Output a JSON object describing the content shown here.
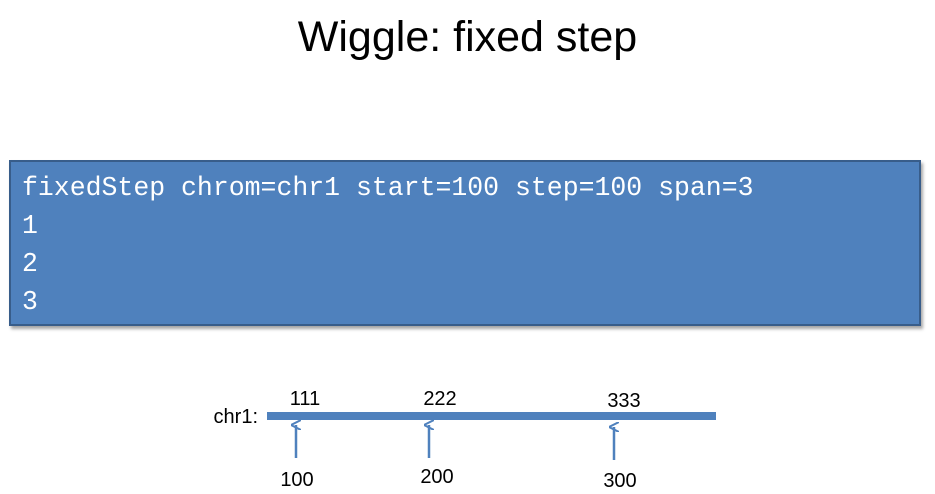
{
  "title": "Wiggle: fixed step",
  "code": {
    "lines": [
      "fixedStep chrom=chr1 start=100 step=100 span=3",
      "1",
      "2",
      "3"
    ],
    "box_color": "#4f81bd",
    "text_color": "#ffffff"
  },
  "diagram": {
    "chrom_label": "chr1:",
    "bar_color": "#4f81bd",
    "arrow_color": "#4f81bd",
    "markers": [
      {
        "top_label": "111",
        "bottom_label": "100"
      },
      {
        "top_label": "222",
        "bottom_label": "200"
      },
      {
        "top_label": "333",
        "bottom_label": "300"
      }
    ]
  }
}
